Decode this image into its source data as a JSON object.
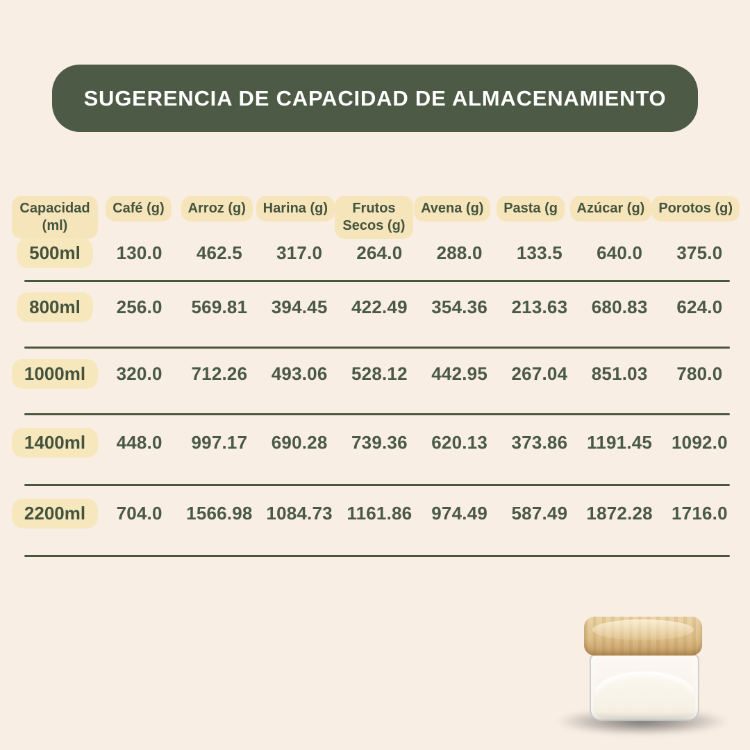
{
  "title": "SUGERENCIA DE CAPACIDAD DE ALMACENAMIENTO",
  "colors": {
    "background": "#f9eee4",
    "banner_green": "#4d5a45",
    "badge_cream": "#f6e5bb",
    "text_green": "#4a5946",
    "divider_line": "#49573f",
    "lid_wood": "#dfc08a"
  },
  "chart_data": {
    "type": "table",
    "title": "SUGERENCIA DE CAPACIDAD DE ALMACENAMIENTO",
    "columns": [
      "Capacidad (ml)",
      "Café (g)",
      "Arroz (g)",
      "Harina (g)",
      "Frutos Secos (g)",
      "Avena (g)",
      "Pasta (g",
      "Azúcar (g)",
      "Porotos (g)"
    ],
    "rows": [
      {
        "label": "500ml",
        "values": [
          "130.0",
          "462.5",
          "317.0",
          "264.0",
          "288.0",
          "133.5",
          "640.0",
          "375.0"
        ]
      },
      {
        "label": "800ml",
        "values": [
          "256.0",
          "569.81",
          "394.45",
          "422.49",
          "354.36",
          "213.63",
          "680.83",
          "624.0"
        ]
      },
      {
        "label": "1000ml",
        "values": [
          "320.0",
          "712.26",
          "493.06",
          "528.12",
          "442.95",
          "267.04",
          "851.03",
          "780.0"
        ]
      },
      {
        "label": "1400ml",
        "values": [
          "448.0",
          "997.17",
          "690.28",
          "739.36",
          "620.13",
          "373.86",
          "1191.45",
          "1092.0"
        ]
      },
      {
        "label": "2200ml",
        "values": [
          "704.0",
          "1566.98",
          "1084.73",
          "1161.86",
          "974.49",
          "587.49",
          "1872.28",
          "1716.0"
        ]
      }
    ]
  },
  "product_image": {
    "name": "glass-jar-with-bamboo-lid"
  }
}
